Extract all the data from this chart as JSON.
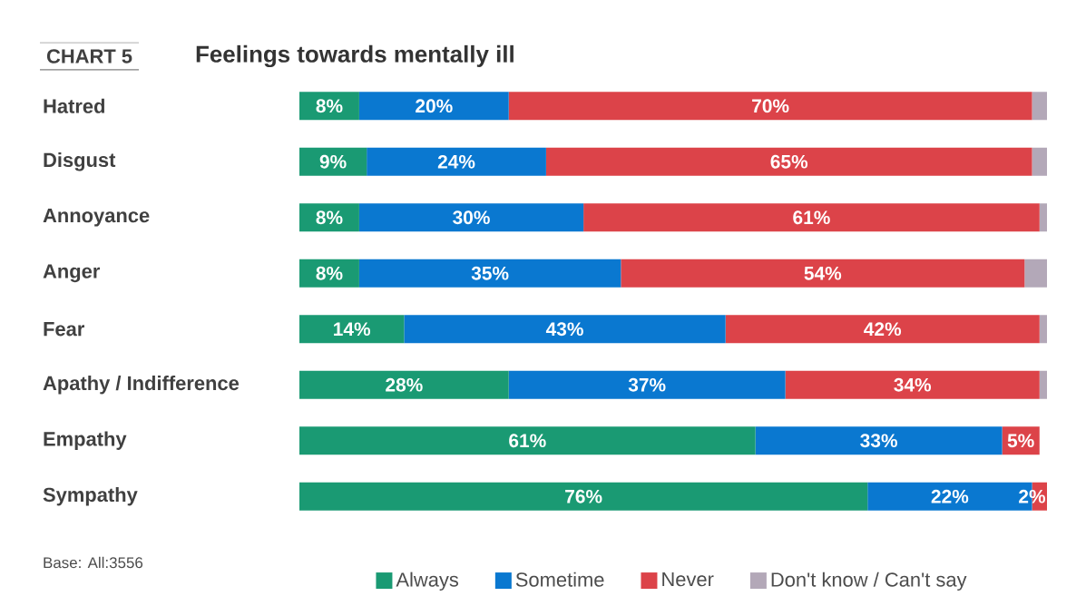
{
  "chart_data": {
    "type": "bar",
    "orientation": "horizontal",
    "stacked": true,
    "title": "Feelings towards mentally ill",
    "annotations": [
      "CHART 5",
      "Base: All:3556"
    ],
    "categories": [
      "Hatred",
      "Disgust",
      "Annoyance",
      "Anger",
      "Fear",
      "Apathy / Indifference",
      "Empathy",
      "Sympathy"
    ],
    "series": [
      {
        "name": "Always",
        "color": "#1a9a73",
        "values": [
          8,
          9,
          8,
          8,
          14,
          28,
          61,
          76
        ],
        "value_labels": [
          "8%",
          "9%",
          "8%",
          "8%",
          "14%",
          "28%",
          "61%",
          "76%"
        ]
      },
      {
        "name": "Sometime",
        "color": "#0a78d0",
        "values": [
          20,
          24,
          30,
          35,
          43,
          37,
          33,
          22
        ],
        "value_labels": [
          "20%",
          "24%",
          "30%",
          "35%",
          "43%",
          "37%",
          "33%",
          "22%"
        ]
      },
      {
        "name": "Never",
        "color": "#dc4349",
        "values": [
          70,
          65,
          61,
          54,
          42,
          34,
          5,
          2
        ],
        "value_labels": [
          "70%",
          "65%",
          "61%",
          "54%",
          "42%",
          "34%",
          "5%",
          "2%"
        ]
      },
      {
        "name": "Don't know / Can't say",
        "color": "#b3a8b8",
        "values": [
          2,
          2,
          1,
          3,
          1,
          1,
          null,
          null
        ],
        "value_labels": [
          null,
          null,
          null,
          null,
          null,
          null,
          null,
          null
        ]
      }
    ],
    "legend": "bottom"
  }
}
